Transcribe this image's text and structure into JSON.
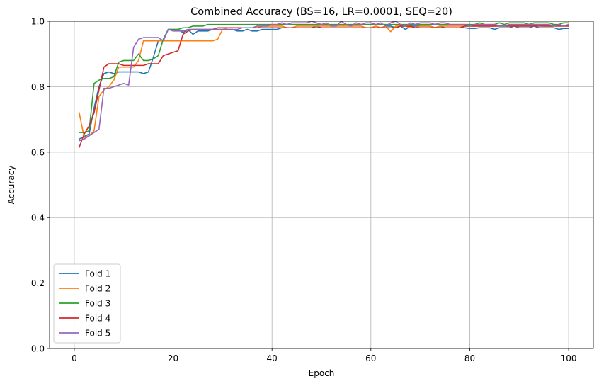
{
  "chart_data": {
    "type": "line",
    "title": "Combined Accuracy (BS=16, LR=0.0001, SEQ=20)",
    "xlabel": "Epoch",
    "ylabel": "Accuracy",
    "xlim": [
      -5,
      105
    ],
    "ylim": [
      0,
      1
    ],
    "xticks": [
      0,
      20,
      40,
      60,
      80,
      100
    ],
    "yticks": [
      0.0,
      0.2,
      0.4,
      0.6,
      0.8,
      1.0
    ],
    "xtick_labels": [
      "0",
      "20",
      "40",
      "60",
      "80",
      "100"
    ],
    "ytick_labels": [
      "0.0",
      "0.2",
      "0.4",
      "0.6",
      "0.8",
      "1.0"
    ],
    "grid": true,
    "legend_position": "lower-left",
    "series": [
      {
        "name": "Fold 1",
        "color": "#1f77b4",
        "x": [
          1,
          2,
          3,
          4,
          5,
          6,
          7,
          8,
          9,
          10,
          11,
          12,
          13,
          14,
          15,
          16,
          17,
          18,
          19,
          20,
          21,
          22,
          23,
          24,
          25,
          26,
          27,
          28,
          29,
          30,
          31,
          32,
          33,
          34,
          35,
          36,
          37,
          38,
          39,
          40,
          41,
          42,
          43,
          44,
          45,
          46,
          47,
          48,
          49,
          50,
          51,
          52,
          53,
          54,
          55,
          56,
          57,
          58,
          59,
          60,
          61,
          62,
          63,
          64,
          65,
          66,
          67,
          68,
          69,
          70,
          71,
          72,
          73,
          74,
          75,
          76,
          77,
          78,
          79,
          80,
          81,
          82,
          83,
          84,
          85,
          86,
          87,
          88,
          89,
          90,
          91,
          92,
          93,
          94,
          95,
          96,
          97,
          98,
          99,
          100
        ],
        "y": [
          0.64,
          0.648,
          0.655,
          0.735,
          0.8,
          0.84,
          0.845,
          0.84,
          0.845,
          0.845,
          0.845,
          0.845,
          0.845,
          0.84,
          0.845,
          0.89,
          0.94,
          0.94,
          0.975,
          0.975,
          0.975,
          0.965,
          0.975,
          0.96,
          0.97,
          0.97,
          0.97,
          0.975,
          0.975,
          0.975,
          0.975,
          0.975,
          0.97,
          0.97,
          0.975,
          0.97,
          0.97,
          0.975,
          0.975,
          0.975,
          0.975,
          0.98,
          0.98,
          0.98,
          0.98,
          0.98,
          0.98,
          0.98,
          0.985,
          0.98,
          0.98,
          0.98,
          0.98,
          0.98,
          0.98,
          0.98,
          0.98,
          0.98,
          0.98,
          0.98,
          0.98,
          0.98,
          0.985,
          0.985,
          0.98,
          0.985,
          0.975,
          0.985,
          0.985,
          0.985,
          0.985,
          0.985,
          0.98,
          0.985,
          0.98,
          0.98,
          0.98,
          0.98,
          0.98,
          0.978,
          0.978,
          0.98,
          0.98,
          0.98,
          0.975,
          0.98,
          0.98,
          0.98,
          0.985,
          0.98,
          0.98,
          0.98,
          0.985,
          0.98,
          0.98,
          0.98,
          0.98,
          0.975,
          0.978,
          0.978
        ]
      },
      {
        "name": "Fold 2",
        "color": "#ff7f0e",
        "x": [
          1,
          2,
          3,
          4,
          5,
          6,
          7,
          8,
          9,
          10,
          11,
          12,
          13,
          14,
          15,
          16,
          17,
          18,
          19,
          20,
          21,
          22,
          23,
          24,
          25,
          26,
          27,
          28,
          29,
          30,
          31,
          32,
          33,
          34,
          35,
          36,
          37,
          38,
          39,
          40,
          41,
          42,
          43,
          44,
          45,
          46,
          47,
          48,
          49,
          50,
          51,
          52,
          53,
          54,
          55,
          56,
          57,
          58,
          59,
          60,
          61,
          62,
          63,
          64,
          65,
          66,
          67,
          68,
          69,
          70,
          71,
          72,
          73,
          74,
          75,
          76,
          77,
          78,
          79,
          80,
          81,
          82,
          83,
          84,
          85,
          86,
          87,
          88,
          89,
          90,
          91,
          92,
          93,
          94,
          95,
          96,
          97,
          98,
          99,
          100
        ],
        "y": [
          0.72,
          0.645,
          0.65,
          0.665,
          0.77,
          0.79,
          0.8,
          0.82,
          0.86,
          0.86,
          0.86,
          0.86,
          0.88,
          0.94,
          0.94,
          0.94,
          0.94,
          0.94,
          0.94,
          0.94,
          0.94,
          0.94,
          0.94,
          0.94,
          0.94,
          0.94,
          0.94,
          0.94,
          0.945,
          0.975,
          0.98,
          0.98,
          0.98,
          0.98,
          0.98,
          0.98,
          0.98,
          0.985,
          0.985,
          0.985,
          0.985,
          0.985,
          0.98,
          0.98,
          0.985,
          0.985,
          0.985,
          0.985,
          0.985,
          0.985,
          0.985,
          0.985,
          0.985,
          0.985,
          0.985,
          0.985,
          0.985,
          0.985,
          0.98,
          0.98,
          0.985,
          0.98,
          0.985,
          0.968,
          0.985,
          0.985,
          0.985,
          0.98,
          0.98,
          0.985,
          0.985,
          0.985,
          0.98,
          0.985,
          0.985,
          0.985,
          0.985,
          0.985,
          0.985,
          0.985,
          0.985,
          0.985,
          0.985,
          0.985,
          0.985,
          0.985,
          0.985,
          0.985,
          0.985,
          0.985,
          0.985,
          0.985,
          0.985,
          0.99,
          0.985,
          0.985,
          0.985,
          0.99,
          0.985,
          0.99
        ]
      },
      {
        "name": "Fold 3",
        "color": "#2ca02c",
        "x": [
          1,
          2,
          3,
          4,
          5,
          6,
          7,
          8,
          9,
          10,
          11,
          12,
          13,
          14,
          15,
          16,
          17,
          18,
          19,
          20,
          21,
          22,
          23,
          24,
          25,
          26,
          27,
          28,
          29,
          30,
          31,
          32,
          33,
          34,
          35,
          36,
          37,
          38,
          39,
          40,
          41,
          42,
          43,
          44,
          45,
          46,
          47,
          48,
          49,
          50,
          51,
          52,
          53,
          54,
          55,
          56,
          57,
          58,
          59,
          60,
          61,
          62,
          63,
          64,
          65,
          66,
          67,
          68,
          69,
          70,
          71,
          72,
          73,
          74,
          75,
          76,
          77,
          78,
          79,
          80,
          81,
          82,
          83,
          84,
          85,
          86,
          87,
          88,
          89,
          90,
          91,
          92,
          93,
          94,
          95,
          96,
          97,
          98,
          99,
          100
        ],
        "y": [
          0.66,
          0.66,
          0.665,
          0.81,
          0.82,
          0.825,
          0.825,
          0.83,
          0.875,
          0.88,
          0.88,
          0.88,
          0.9,
          0.88,
          0.88,
          0.885,
          0.895,
          0.945,
          0.975,
          0.975,
          0.975,
          0.98,
          0.98,
          0.985,
          0.985,
          0.985,
          0.99,
          0.99,
          0.99,
          0.99,
          0.99,
          0.99,
          0.99,
          0.99,
          0.99,
          0.99,
          0.99,
          0.99,
          0.99,
          0.99,
          0.99,
          0.99,
          0.99,
          0.99,
          0.99,
          0.99,
          0.99,
          0.99,
          0.99,
          0.99,
          0.99,
          0.99,
          0.99,
          0.99,
          0.99,
          0.99,
          0.99,
          0.99,
          0.99,
          0.99,
          0.99,
          0.99,
          0.99,
          0.99,
          0.99,
          0.99,
          0.99,
          0.99,
          0.99,
          0.99,
          0.99,
          0.99,
          0.99,
          0.99,
          0.99,
          0.99,
          0.99,
          0.99,
          0.99,
          0.99,
          0.99,
          0.995,
          0.99,
          0.99,
          0.99,
          0.995,
          0.99,
          0.995,
          0.995,
          0.995,
          0.995,
          0.99,
          0.995,
          0.995,
          0.995,
          0.995,
          0.99,
          0.99,
          0.995,
          0.995
        ]
      },
      {
        "name": "Fold 4",
        "color": "#d62728",
        "x": [
          1,
          2,
          3,
          4,
          5,
          6,
          7,
          8,
          9,
          10,
          11,
          12,
          13,
          14,
          15,
          16,
          17,
          18,
          19,
          20,
          21,
          22,
          23,
          24,
          25,
          26,
          27,
          28,
          29,
          30,
          31,
          32,
          33,
          34,
          35,
          36,
          37,
          38,
          39,
          40,
          41,
          42,
          43,
          44,
          45,
          46,
          47,
          48,
          49,
          50,
          51,
          52,
          53,
          54,
          55,
          56,
          57,
          58,
          59,
          60,
          61,
          62,
          63,
          64,
          65,
          66,
          67,
          68,
          69,
          70,
          71,
          72,
          73,
          74,
          75,
          76,
          77,
          78,
          79,
          80,
          81,
          82,
          83,
          84,
          85,
          86,
          87,
          88,
          89,
          90,
          91,
          92,
          93,
          94,
          95,
          96,
          97,
          98,
          99,
          100
        ],
        "y": [
          0.615,
          0.655,
          0.68,
          0.72,
          0.79,
          0.86,
          0.87,
          0.87,
          0.87,
          0.865,
          0.865,
          0.865,
          0.865,
          0.865,
          0.87,
          0.87,
          0.87,
          0.895,
          0.9,
          0.905,
          0.91,
          0.96,
          0.97,
          0.975,
          0.975,
          0.975,
          0.975,
          0.975,
          0.98,
          0.98,
          0.98,
          0.98,
          0.98,
          0.98,
          0.98,
          0.98,
          0.98,
          0.98,
          0.98,
          0.98,
          0.98,
          0.98,
          0.98,
          0.98,
          0.98,
          0.98,
          0.98,
          0.98,
          0.98,
          0.98,
          0.98,
          0.98,
          0.98,
          0.98,
          0.98,
          0.98,
          0.98,
          0.98,
          0.98,
          0.98,
          0.98,
          0.98,
          0.98,
          0.98,
          0.98,
          0.985,
          0.985,
          0.985,
          0.98,
          0.98,
          0.98,
          0.98,
          0.98,
          0.98,
          0.98,
          0.98,
          0.98,
          0.98,
          0.985,
          0.985,
          0.985,
          0.985,
          0.985,
          0.985,
          0.985,
          0.985,
          0.985,
          0.985,
          0.985,
          0.985,
          0.985,
          0.985,
          0.985,
          0.985,
          0.985,
          0.985,
          0.985,
          0.985,
          0.985,
          0.985
        ]
      },
      {
        "name": "Fold 5",
        "color": "#9467bd",
        "x": [
          1,
          2,
          3,
          4,
          5,
          6,
          7,
          8,
          9,
          10,
          11,
          12,
          13,
          14,
          15,
          16,
          17,
          18,
          19,
          20,
          21,
          22,
          23,
          24,
          25,
          26,
          27,
          28,
          29,
          30,
          31,
          32,
          33,
          34,
          35,
          36,
          37,
          38,
          39,
          40,
          41,
          42,
          43,
          44,
          45,
          46,
          47,
          48,
          49,
          50,
          51,
          52,
          53,
          54,
          55,
          56,
          57,
          58,
          59,
          60,
          61,
          62,
          63,
          64,
          65,
          66,
          67,
          68,
          69,
          70,
          71,
          72,
          73,
          74,
          75,
          76,
          77,
          78,
          79,
          80,
          81,
          82,
          83,
          84,
          85,
          86,
          87,
          88,
          89,
          90,
          91,
          92,
          93,
          94,
          95,
          96,
          97,
          98,
          99,
          100
        ],
        "y": [
          0.635,
          0.64,
          0.65,
          0.66,
          0.67,
          0.795,
          0.795,
          0.8,
          0.805,
          0.81,
          0.805,
          0.92,
          0.945,
          0.95,
          0.95,
          0.95,
          0.95,
          0.94,
          0.975,
          0.97,
          0.97,
          0.97,
          0.975,
          0.975,
          0.975,
          0.975,
          0.975,
          0.975,
          0.975,
          0.975,
          0.975,
          0.975,
          0.975,
          0.98,
          0.98,
          0.98,
          0.985,
          0.985,
          0.985,
          0.99,
          0.99,
          0.995,
          0.99,
          0.995,
          0.995,
          0.995,
          0.995,
          1.0,
          0.995,
          0.99,
          0.995,
          0.985,
          0.985,
          1.0,
          0.99,
          0.985,
          0.995,
          0.99,
          0.995,
          0.995,
          0.99,
          0.995,
          0.985,
          0.995,
          1.0,
          0.99,
          0.985,
          0.995,
          0.99,
          0.995,
          0.995,
          0.995,
          0.99,
          0.995,
          0.995,
          0.99,
          0.99,
          0.99,
          0.99,
          0.985,
          0.99,
          0.99,
          0.99,
          0.99,
          0.99,
          0.985,
          0.985,
          0.99,
          0.99,
          0.99,
          0.99,
          0.99,
          0.99,
          0.99,
          0.99,
          0.99,
          0.985,
          0.99,
          0.985,
          0.99
        ]
      }
    ]
  }
}
